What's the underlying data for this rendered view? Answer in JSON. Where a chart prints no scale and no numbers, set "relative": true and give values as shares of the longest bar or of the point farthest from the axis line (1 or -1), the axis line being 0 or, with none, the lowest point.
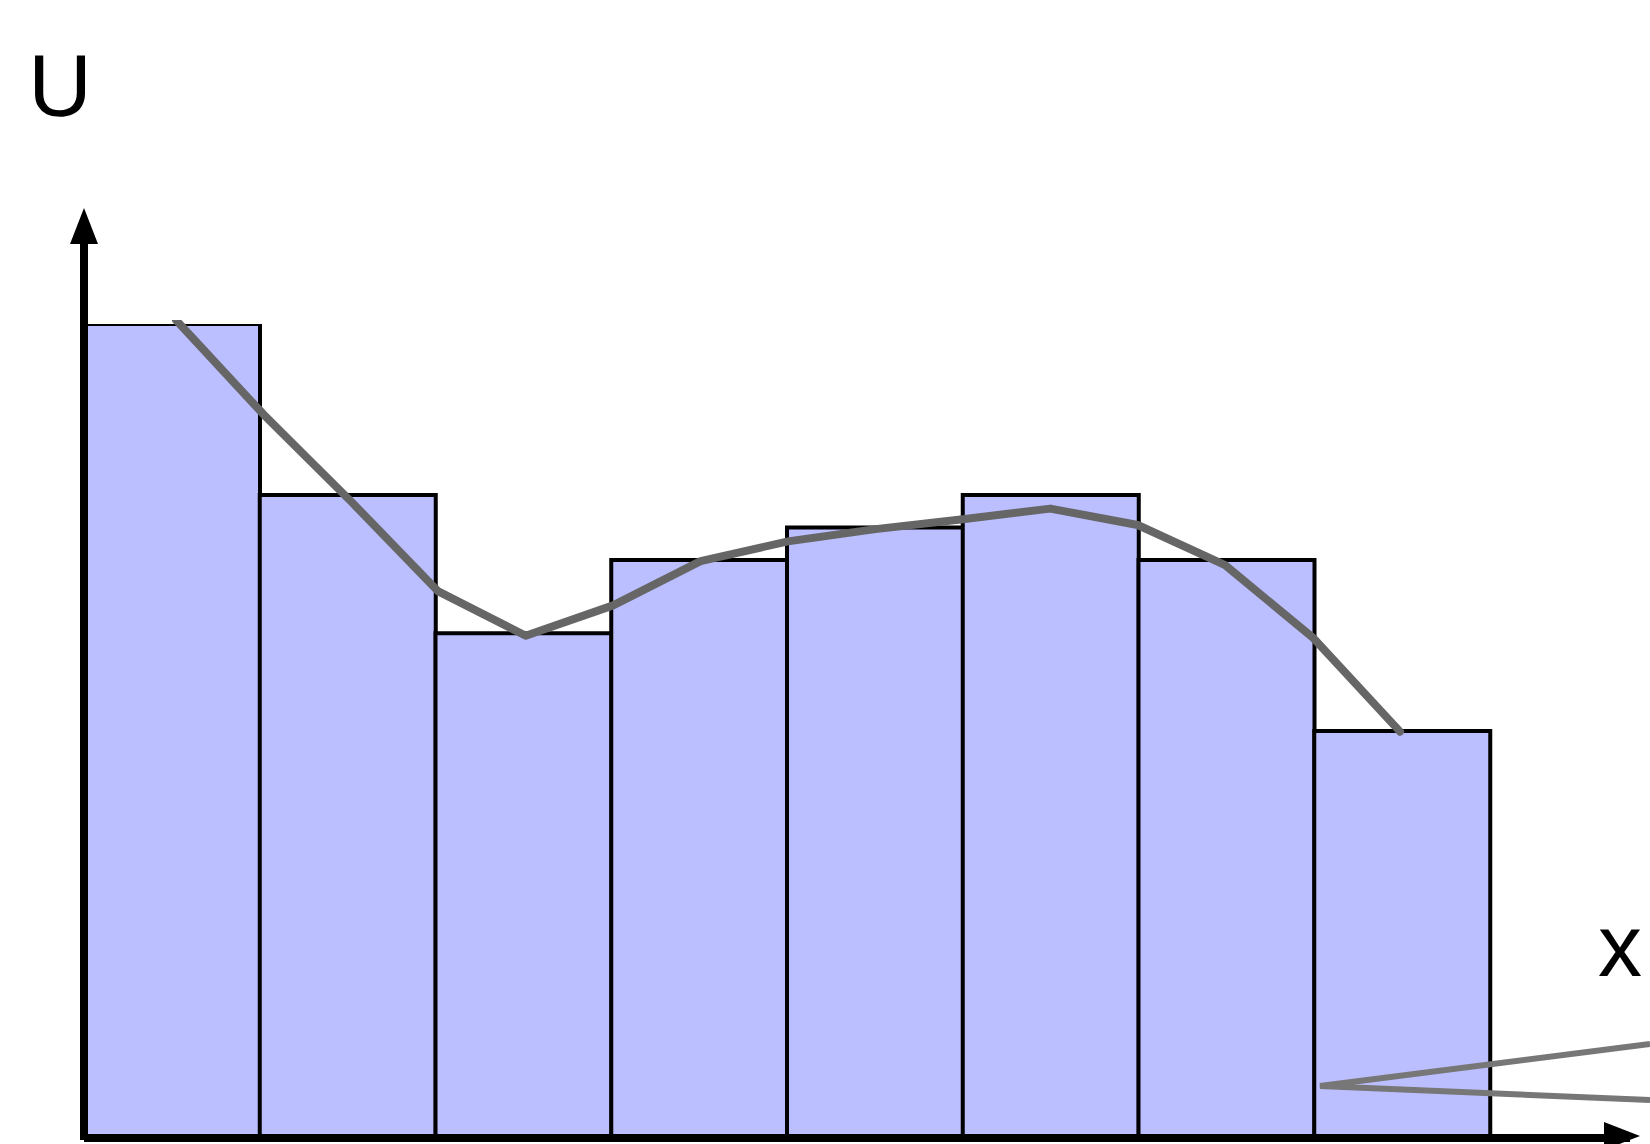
{
  "chart_data": [
    {
      "type": "bar",
      "relative": true,
      "xlabel": "x",
      "ylabel": "U",
      "categories": [
        null,
        null,
        null,
        null,
        null,
        null,
        null,
        null
      ],
      "color": "#bcbfff",
      "values": [
        1,
        0.79,
        0.62,
        0.71,
        0.75,
        0.79,
        0.71,
        0.5
      ]
    },
    {
      "type": "line",
      "relative": true,
      "categories": [
        null,
        null,
        null,
        null,
        null,
        null,
        null,
        null,
        null,
        null,
        null,
        null,
        null,
        null,
        null
      ],
      "color": "#666666",
      "values": [
        1,
        0.885,
        0.779,
        0.669,
        0.615,
        0.652,
        0.706,
        0.73,
        0.745,
        0.757,
        0.77,
        0.75,
        0.701,
        0.613,
        0.498
      ],
      "marker": "none",
      "line_style": "solid"
    }
  ]
}
